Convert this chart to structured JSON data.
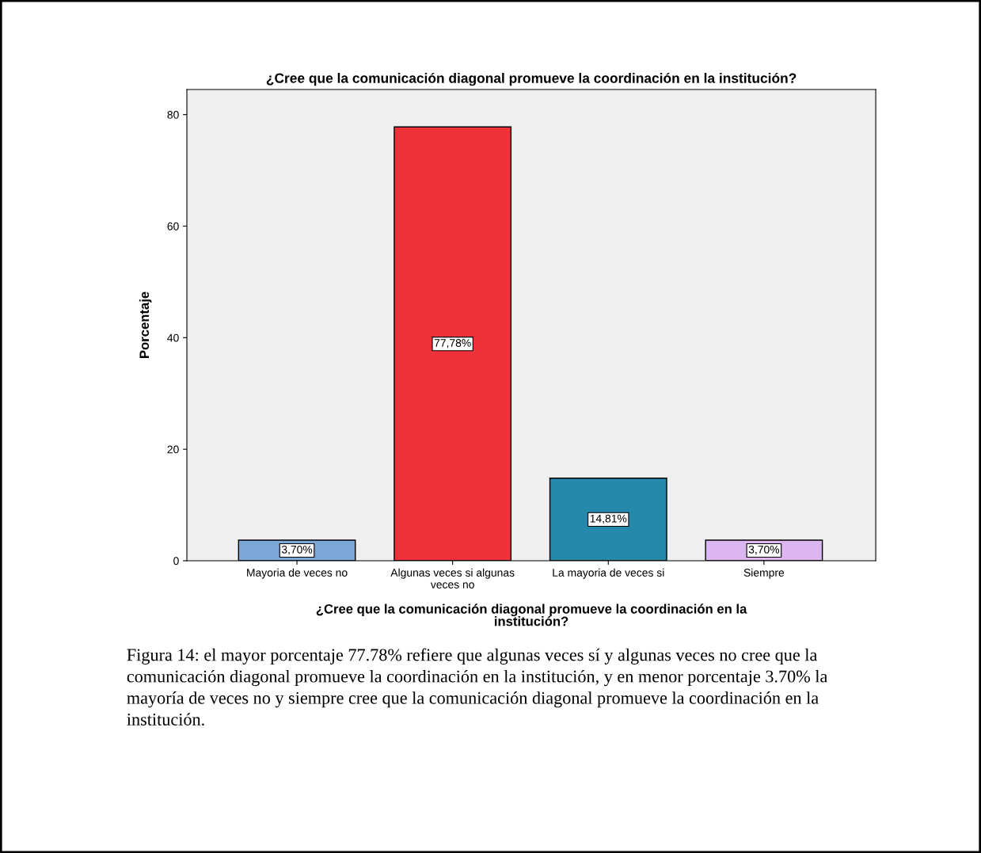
{
  "chart_data": {
    "type": "bar",
    "title": "¿Cree que la comunicación diagonal promueve la coordinación en la institución?",
    "xlabel": "¿Cree que la comunicación diagonal promueve la coordinación en la\ninstitución?",
    "ylabel": "Porcentaje",
    "categories": [
      "Mayoria de veces no",
      "Algunas veces si algunas\nveces no",
      "La mayoria de veces si",
      "Siempre"
    ],
    "values": [
      3.7,
      77.78,
      14.81,
      3.7
    ],
    "colors": [
      "#7ba7d6",
      "#ef313a",
      "#2589ab",
      "#dcb6f0"
    ],
    "value_labels": [
      "3,70%",
      "77,78%",
      "14,81%",
      "3,70%"
    ],
    "ylim": [
      0,
      84.5
    ],
    "yticks": [
      0,
      20,
      40,
      60,
      80
    ],
    "grid": false,
    "legend": false,
    "annotations": [
      "Figura 14: el mayor porcentaje 77.78% refiere que algunas veces sí y algunas veces no cree que la comunicación diagonal promueve la coordinación en la institución, y en menor porcentaje 3.70% la mayoría de veces no y siempre cree que la comunicación diagonal promueve la coordinación en la institución."
    ]
  }
}
